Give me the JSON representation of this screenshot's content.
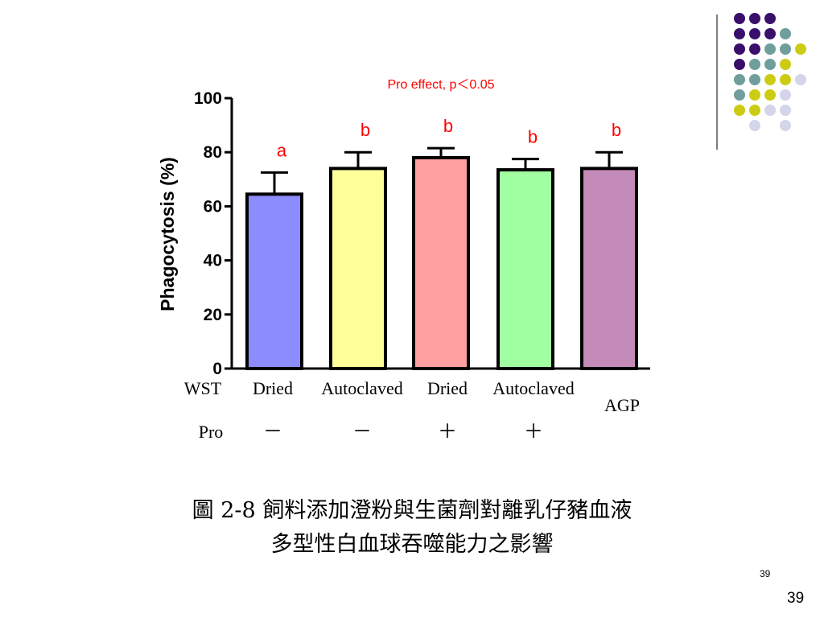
{
  "chart_data": {
    "type": "bar",
    "title": "Pro effect, p＜0.05",
    "ylabel": "Phagocytosis (%)",
    "xlabel": "",
    "ylim": [
      0,
      100
    ],
    "yticks": [
      0,
      20,
      40,
      60,
      80,
      100
    ],
    "categories": [
      "Dried",
      "Autoclaved",
      "Dried",
      "Autoclaved",
      "AGP"
    ],
    "values": [
      64.5,
      74,
      78,
      73.5,
      74
    ],
    "errors": [
      8,
      6,
      3.5,
      4,
      6
    ],
    "significance_letters": [
      "a",
      "b",
      "b",
      "b",
      "b"
    ],
    "bar_colors": [
      "#8c8cff",
      "#ffff99",
      "#ff9f9f",
      "#a0ffa0",
      "#c48ab8"
    ],
    "row_labels": {
      "wst": "WST",
      "pro": "Pro"
    },
    "pro_signs": [
      "－",
      "－",
      "＋",
      "＋",
      ""
    ],
    "grid": false,
    "legend": "none",
    "title_color": "#ff0000"
  },
  "caption": {
    "line1": "圖 2-8 飼料添加澄粉與生菌劑對離乳仔豬血液",
    "line2": "多型性白血球吞噬能力之影響"
  },
  "slide": {
    "number_small": "39",
    "number_large": "39",
    "dot_colors": {
      "purple": "#3a0f6b",
      "teal": "#6f9e9c",
      "yellow": "#cccc14",
      "lavender": "#d4d4ea",
      "rule": "#555555"
    }
  }
}
